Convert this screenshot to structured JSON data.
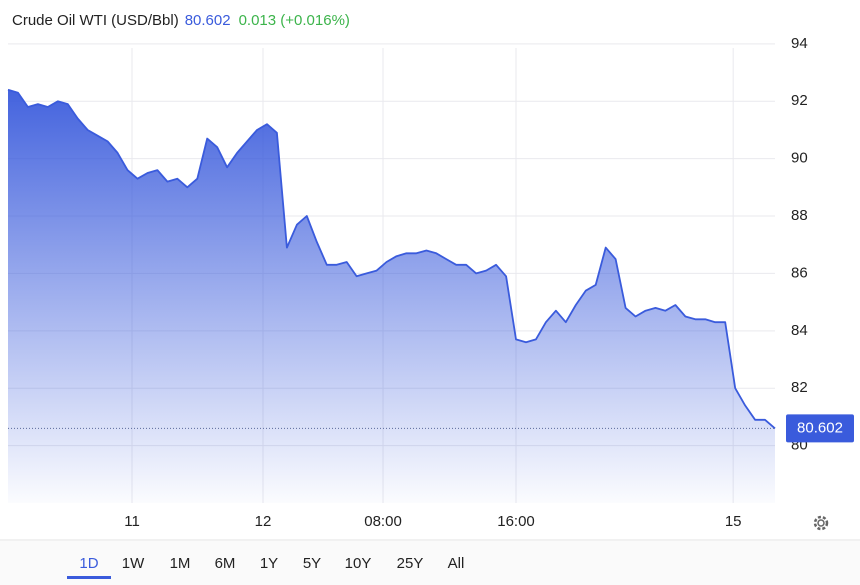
{
  "chart_data": {
    "type": "line",
    "title": "Crude Oil WTI (USD/Bbl)",
    "last_value": 80.602,
    "change": "0.013 (+0.016%)",
    "color": "#3a5bdc",
    "change_color": "#3cb44b",
    "values": [
      92.4,
      92.3,
      91.8,
      91.9,
      91.8,
      92.0,
      91.9,
      91.4,
      91.0,
      90.8,
      90.6,
      90.2,
      89.6,
      89.3,
      89.5,
      89.6,
      89.2,
      89.3,
      89.0,
      89.3,
      90.7,
      90.4,
      89.7,
      90.2,
      90.6,
      91.0,
      91.2,
      90.9,
      86.9,
      87.7,
      88.0,
      87.1,
      86.3,
      86.3,
      86.4,
      85.9,
      86.0,
      86.1,
      86.4,
      86.6,
      86.7,
      86.7,
      86.8,
      86.7,
      86.5,
      86.3,
      86.3,
      86.0,
      86.1,
      86.3,
      85.9,
      83.7,
      83.6,
      83.7,
      84.3,
      84.7,
      84.3,
      84.9,
      85.4,
      85.6,
      86.9,
      86.5,
      84.8,
      84.5,
      84.7,
      84.8,
      84.7,
      84.9,
      84.5,
      84.4,
      84.4,
      84.3,
      84.3,
      82.0,
      81.4,
      80.9,
      80.9,
      80.6
    ],
    "xlim": [
      0,
      77
    ],
    "xticks": [
      {
        "value": 12.45,
        "label": "11"
      },
      {
        "value": 25.6,
        "label": "12"
      },
      {
        "value": 37.65,
        "label": "08:00"
      },
      {
        "value": 51,
        "label": "16:00"
      },
      {
        "value": 72.8,
        "label": "15"
      }
    ],
    "ylim": [
      78,
      95.25
    ],
    "yticks": [
      80,
      82,
      84,
      86,
      88,
      90,
      92,
      94
    ],
    "grid": true,
    "range_options": [
      "1D",
      "1W",
      "1M",
      "6M",
      "1Y",
      "5Y",
      "10Y",
      "25Y",
      "All"
    ],
    "selected_range": "1D"
  }
}
